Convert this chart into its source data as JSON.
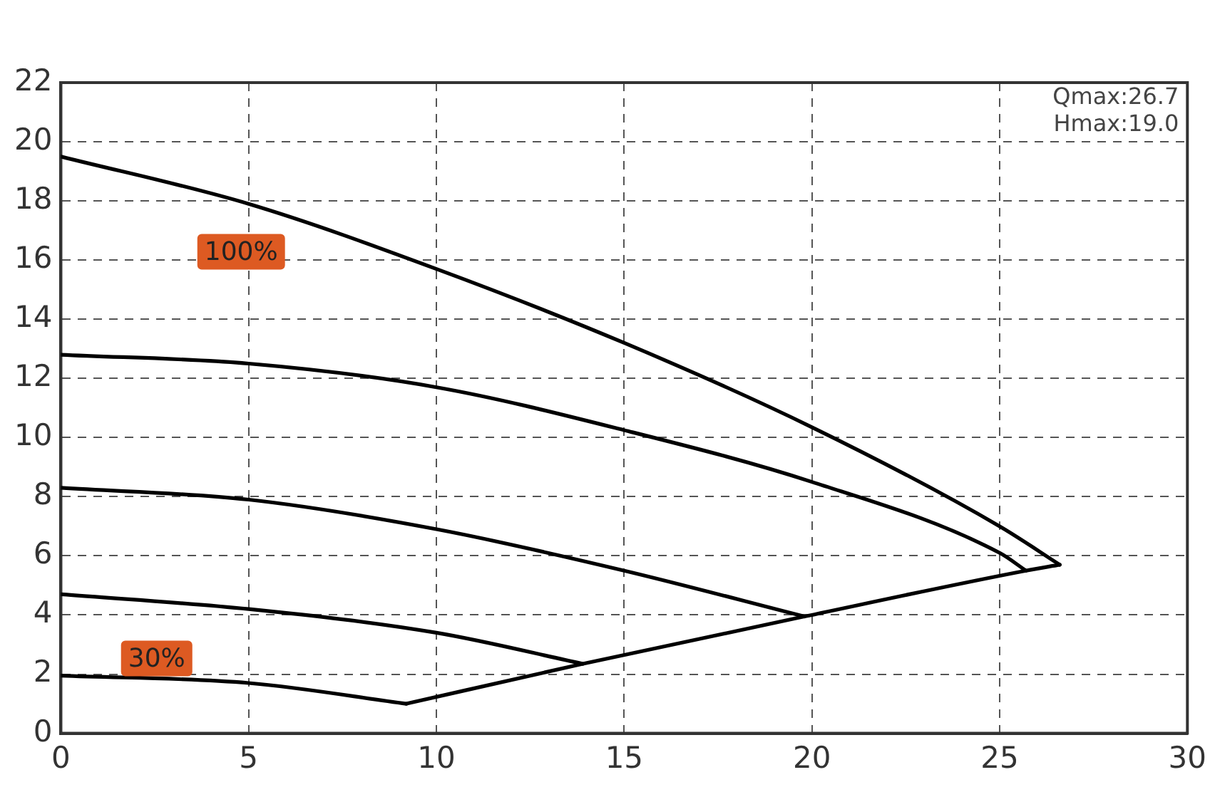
{
  "chart_data": {
    "type": "line",
    "xlim": [
      0,
      30
    ],
    "xticks": [
      0,
      5,
      10,
      15,
      20,
      25,
      30
    ],
    "ylim": [
      0,
      22
    ],
    "yticks": [
      0,
      2,
      4,
      6,
      8,
      10,
      12,
      14,
      16,
      18,
      20,
      22
    ],
    "grid": true,
    "legend": false,
    "marker": "none",
    "line_style": "solid",
    "series": [
      {
        "color": "#000000",
        "x": [
          0,
          5,
          10,
          15,
          20,
          25,
          26.6
        ],
        "values": [
          19.5,
          17.9,
          15.7,
          13.2,
          10.35,
          7.0,
          5.7
        ]
      },
      {
        "color": "#000000",
        "x": [
          0,
          5,
          10,
          15,
          20,
          25,
          25.7
        ],
        "values": [
          12.8,
          12.5,
          11.7,
          10.25,
          8.5,
          6.1,
          5.5
        ]
      },
      {
        "color": "#000000",
        "x": [
          0,
          5,
          10,
          15,
          19.8
        ],
        "values": [
          8.3,
          7.9,
          6.9,
          5.5,
          3.95
        ]
      },
      {
        "color": "#000000",
        "x": [
          0,
          5,
          10,
          13.9
        ],
        "values": [
          4.7,
          4.2,
          3.4,
          2.35
        ]
      },
      {
        "color": "#000000",
        "x": [
          0,
          5,
          9.2
        ],
        "values": [
          1.95,
          1.7,
          1.0
        ]
      },
      {
        "color": "#000000",
        "x": [
          9.2,
          13.9,
          19.8,
          25.7,
          26.6
        ],
        "values": [
          1.0,
          2.35,
          3.95,
          5.5,
          5.7
        ]
      }
    ],
    "annotations": [
      "100%",
      "30%",
      "Qmax:26.7",
      "Hmax:19.0"
    ]
  }
}
